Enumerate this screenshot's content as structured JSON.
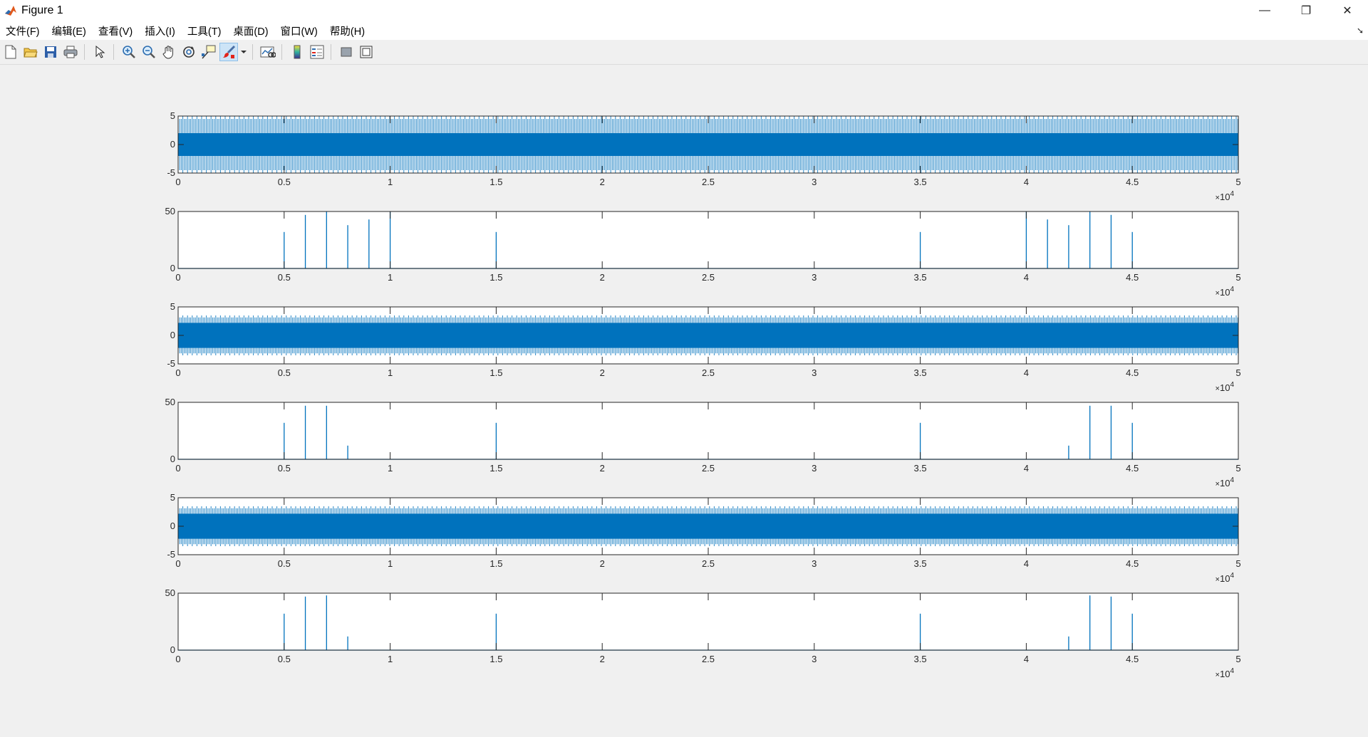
{
  "window": {
    "title": "Figure 1",
    "controls": {
      "minimize": "—",
      "restore": "❐",
      "close": "✕"
    }
  },
  "menu": {
    "items": [
      "文件(F)",
      "编辑(E)",
      "查看(V)",
      "插入(I)",
      "工具(T)",
      "桌面(D)",
      "窗口(W)",
      "帮助(H)"
    ],
    "overflow_icon": "➘"
  },
  "toolbar": {
    "buttons": [
      "new-figure-icon",
      "open-icon",
      "save-icon",
      "print-icon",
      "pointer-icon",
      "zoom-in-icon",
      "zoom-out-icon",
      "pan-icon",
      "rotate-icon",
      "data-cursor-icon",
      "brush-icon",
      "link-plot-icon",
      "colorbar-icon",
      "legend-icon",
      "hide-plot-tools-icon",
      "show-plot-tools-icon"
    ],
    "active": "brush-icon"
  },
  "colors": {
    "line": "#0072bd",
    "axes_bg": "#ffffff",
    "figure_bg": "#f0f0f0",
    "axis": "#262626"
  },
  "chart_data": [
    {
      "type": "line",
      "description": "dense oscillating signal",
      "xlim": [
        0,
        50000
      ],
      "ylim": [
        -5,
        5
      ],
      "xticks": [
        0,
        5000,
        10000,
        15000,
        20000,
        25000,
        30000,
        35000,
        40000,
        45000,
        50000
      ],
      "xticklabels": [
        "0",
        "0.5",
        "1",
        "1.5",
        "2",
        "2.5",
        "3",
        "3.5",
        "4",
        "4.5",
        "5"
      ],
      "yticks": [
        -5,
        0,
        5
      ],
      "yticklabels": [
        "-5",
        "0",
        "5"
      ],
      "exponent": "10",
      "exponent_power": "4",
      "exponent_prefix": "×",
      "amplitude": 5,
      "inner_band": 2,
      "grid": false
    },
    {
      "type": "line",
      "description": "spectrum spikes",
      "xlim": [
        0,
        50000
      ],
      "ylim": [
        0,
        50
      ],
      "xticks": [
        0,
        5000,
        10000,
        15000,
        20000,
        25000,
        30000,
        35000,
        40000,
        45000,
        50000
      ],
      "xticklabels": [
        "0",
        "0.5",
        "1",
        "1.5",
        "2",
        "2.5",
        "3",
        "3.5",
        "4",
        "4.5",
        "5"
      ],
      "yticks": [
        0,
        50
      ],
      "yticklabels": [
        "0",
        "50"
      ],
      "exponent": "10",
      "exponent_power": "4",
      "exponent_prefix": "×",
      "spikes": [
        {
          "x": 5000,
          "y": 32
        },
        {
          "x": 6000,
          "y": 47
        },
        {
          "x": 7000,
          "y": 50
        },
        {
          "x": 8000,
          "y": 38
        },
        {
          "x": 9000,
          "y": 43
        },
        {
          "x": 10000,
          "y": 50
        },
        {
          "x": 15000,
          "y": 32
        },
        {
          "x": 35000,
          "y": 32
        },
        {
          "x": 40000,
          "y": 50
        },
        {
          "x": 41000,
          "y": 43
        },
        {
          "x": 42000,
          "y": 38
        },
        {
          "x": 43000,
          "y": 50
        },
        {
          "x": 44000,
          "y": 47
        },
        {
          "x": 45000,
          "y": 32
        }
      ],
      "grid": false
    },
    {
      "type": "line",
      "description": "filtered oscillating signal",
      "xlim": [
        0,
        50000
      ],
      "ylim": [
        -5,
        5
      ],
      "xticks": [
        0,
        5000,
        10000,
        15000,
        20000,
        25000,
        30000,
        35000,
        40000,
        45000,
        50000
      ],
      "xticklabels": [
        "0",
        "0.5",
        "1",
        "1.5",
        "2",
        "2.5",
        "3",
        "3.5",
        "4",
        "4.5",
        "5"
      ],
      "yticks": [
        -5,
        0,
        5
      ],
      "yticklabels": [
        "-5",
        "0",
        "5"
      ],
      "exponent": "10",
      "exponent_power": "4",
      "exponent_prefix": "×",
      "amplitude": 3.5,
      "inner_band": 2.2,
      "grid": false
    },
    {
      "type": "line",
      "description": "filtered spectrum spikes",
      "xlim": [
        0,
        50000
      ],
      "ylim": [
        0,
        50
      ],
      "xticks": [
        0,
        5000,
        10000,
        15000,
        20000,
        25000,
        30000,
        35000,
        40000,
        45000,
        50000
      ],
      "xticklabels": [
        "0",
        "0.5",
        "1",
        "1.5",
        "2",
        "2.5",
        "3",
        "3.5",
        "4",
        "4.5",
        "5"
      ],
      "yticks": [
        0,
        50
      ],
      "yticklabels": [
        "0",
        "50"
      ],
      "exponent": "10",
      "exponent_power": "4",
      "exponent_prefix": "×",
      "spikes": [
        {
          "x": 5000,
          "y": 32
        },
        {
          "x": 6000,
          "y": 47
        },
        {
          "x": 7000,
          "y": 47
        },
        {
          "x": 8000,
          "y": 12
        },
        {
          "x": 15000,
          "y": 32
        },
        {
          "x": 35000,
          "y": 32
        },
        {
          "x": 42000,
          "y": 12
        },
        {
          "x": 43000,
          "y": 47
        },
        {
          "x": 44000,
          "y": 47
        },
        {
          "x": 45000,
          "y": 32
        }
      ],
      "grid": false
    },
    {
      "type": "line",
      "description": "filtered oscillating signal",
      "xlim": [
        0,
        50000
      ],
      "ylim": [
        -5,
        5
      ],
      "xticks": [
        0,
        5000,
        10000,
        15000,
        20000,
        25000,
        30000,
        35000,
        40000,
        45000,
        50000
      ],
      "xticklabels": [
        "0",
        "0.5",
        "1",
        "1.5",
        "2",
        "2.5",
        "3",
        "3.5",
        "4",
        "4.5",
        "5"
      ],
      "yticks": [
        -5,
        0,
        5
      ],
      "yticklabels": [
        "-5",
        "0",
        "5"
      ],
      "exponent": "10",
      "exponent_power": "4",
      "exponent_prefix": "×",
      "amplitude": 3.5,
      "inner_band": 2.2,
      "grid": false
    },
    {
      "type": "line",
      "description": "filtered spectrum spikes",
      "xlim": [
        0,
        50000
      ],
      "ylim": [
        0,
        50
      ],
      "xticks": [
        0,
        5000,
        10000,
        15000,
        20000,
        25000,
        30000,
        35000,
        40000,
        45000,
        50000
      ],
      "xticklabels": [
        "0",
        "0.5",
        "1",
        "1.5",
        "2",
        "2.5",
        "3",
        "3.5",
        "4",
        "4.5",
        "5"
      ],
      "yticks": [
        0,
        50
      ],
      "yticklabels": [
        "0",
        "50"
      ],
      "exponent": "10",
      "exponent_power": "4",
      "exponent_prefix": "×",
      "spikes": [
        {
          "x": 5000,
          "y": 32
        },
        {
          "x": 6000,
          "y": 47
        },
        {
          "x": 7000,
          "y": 48
        },
        {
          "x": 8000,
          "y": 12
        },
        {
          "x": 15000,
          "y": 32
        },
        {
          "x": 35000,
          "y": 32
        },
        {
          "x": 42000,
          "y": 12
        },
        {
          "x": 43000,
          "y": 48
        },
        {
          "x": 44000,
          "y": 47
        },
        {
          "x": 45000,
          "y": 32
        }
      ],
      "grid": false
    }
  ]
}
